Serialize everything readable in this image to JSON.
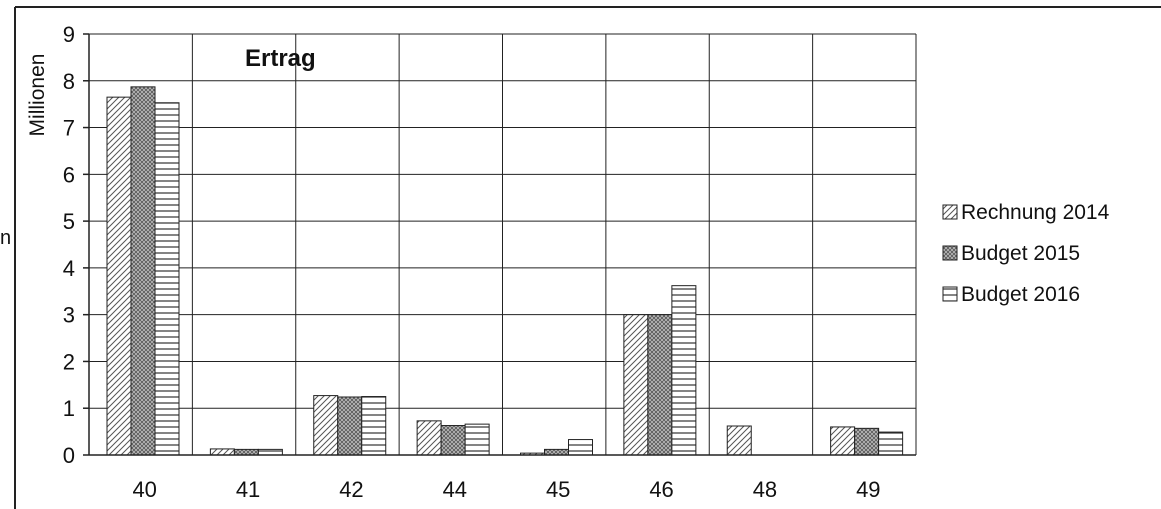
{
  "chart_data": {
    "type": "bar",
    "title": "Ertrag",
    "ylabel": "Millionen",
    "xlabel": "",
    "ylim": [
      0,
      9
    ],
    "yticks": [
      0,
      1,
      2,
      3,
      4,
      5,
      6,
      7,
      8,
      9
    ],
    "categories": [
      "40",
      "41",
      "42",
      "44",
      "45",
      "46",
      "48",
      "49"
    ],
    "series": [
      {
        "name": "Rechnung 2014",
        "pattern": "diagonal-hatch",
        "values": [
          7.65,
          0.13,
          1.27,
          0.73,
          0.04,
          3.0,
          0.62,
          0.6
        ]
      },
      {
        "name": "Budget 2015",
        "pattern": "crosshatch",
        "values": [
          7.87,
          0.12,
          1.24,
          0.63,
          0.12,
          3.0,
          0.0,
          0.57
        ]
      },
      {
        "name": "Budget 2016",
        "pattern": "horizontal-lines",
        "values": [
          7.53,
          0.12,
          1.25,
          0.66,
          0.33,
          3.62,
          0.0,
          0.49
        ]
      }
    ],
    "grid": true,
    "legend_position": "right",
    "stray_text": "n"
  }
}
